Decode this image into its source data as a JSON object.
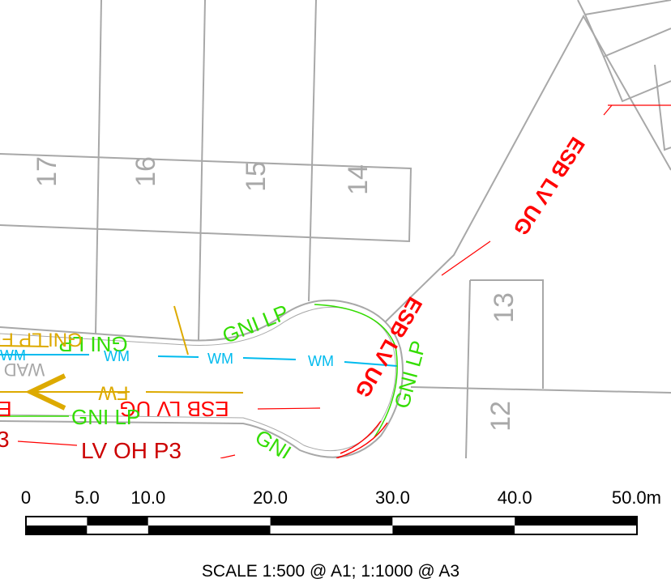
{
  "colors": {
    "plot": "#a8a8a8",
    "road": "#a8a8a8",
    "esb": "#ff0000",
    "esb_dark": "#cc0000",
    "gas": "#33dd00",
    "water": "#00bbee",
    "foul": "#ddaa00",
    "ink": "#000000"
  },
  "plots": [
    {
      "id": "17",
      "label": "17"
    },
    {
      "id": "16",
      "label": "16"
    },
    {
      "id": "15",
      "label": "15"
    },
    {
      "id": "14",
      "label": "14"
    },
    {
      "id": "13",
      "label": "13"
    },
    {
      "id": "12",
      "label": "12"
    }
  ],
  "service_labels": {
    "esb_lv_ug_long": "ESB LV UG",
    "esb_lv_ug_turn": "ESB LV UG",
    "esb_lv_ug_road": "ESB LV UG",
    "esb_partial": "E",
    "lv_oh": "LV OH P3",
    "lv_oh_partial": "3",
    "gni_lp_top": "GNI LP",
    "gni_lp_road": "GNI LP",
    "gni_lp_lower": "GNI LP",
    "gni_lp_right": "GNI LP",
    "gni_partial": "GNI",
    "gni_lp_fir": "GNI LP FIR",
    "wm": "WM",
    "fw": "FW",
    "wad": "WAD"
  },
  "scale_bar": {
    "ticks": [
      "0",
      "5.0",
      "10.0",
      "20.0",
      "30.0",
      "40.0",
      "50.0m"
    ],
    "caption": "SCALE 1:500 @ A1;  1:1000 @ A3"
  }
}
